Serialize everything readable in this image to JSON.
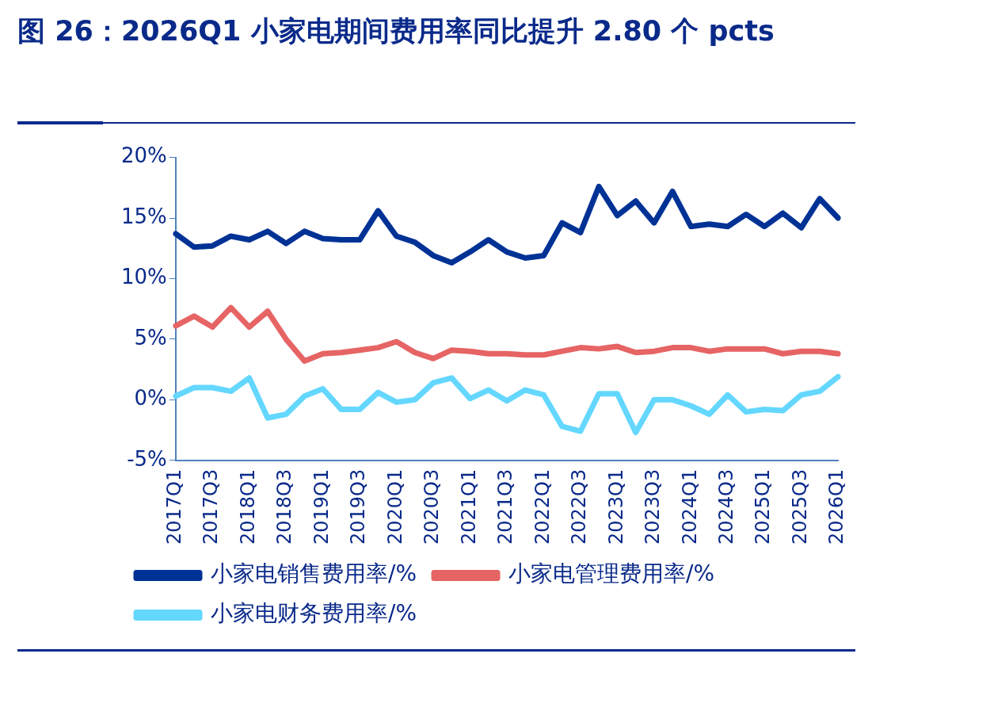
{
  "chart_data": {
    "type": "line",
    "title": "图 26：2026Q1 小家电期间费用率同比提升 2.80 个 pcts",
    "categories": [
      "2017Q1",
      null,
      "2017Q3",
      null,
      "2018Q1",
      null,
      "2018Q3",
      null,
      "2019Q1",
      null,
      "2019Q3",
      null,
      "2020Q1",
      null,
      "2020Q3",
      null,
      "2021Q1",
      null,
      "2021Q3",
      null,
      "2022Q1",
      null,
      "2022Q3",
      null,
      "2023Q1",
      null,
      "2023Q3",
      null,
      "2024Q1",
      null,
      "2024Q3",
      null,
      "2025Q1",
      null,
      "2025Q3",
      null,
      "2026Q1"
    ],
    "series": [
      {
        "name": "小家电销售费用率/%",
        "color": "#003296",
        "values": [
          13.7,
          12.6,
          12.7,
          13.5,
          13.2,
          13.9,
          12.9,
          13.9,
          13.3,
          13.2,
          13.2,
          15.6,
          13.5,
          13.0,
          11.9,
          11.3,
          12.2,
          13.2,
          12.2,
          11.7,
          11.9,
          14.6,
          13.8,
          17.6,
          15.2,
          16.4,
          14.6,
          17.2,
          14.3,
          14.5,
          14.3,
          15.3,
          14.3,
          15.4,
          14.2,
          16.6,
          15.0
        ]
      },
      {
        "name": "小家电管理费用率/%",
        "color": "#e66464",
        "values": [
          6.1,
          6.9,
          6.0,
          7.6,
          6.0,
          7.3,
          5.0,
          3.2,
          3.8,
          3.9,
          4.1,
          4.3,
          4.8,
          3.9,
          3.4,
          4.1,
          4.0,
          3.8,
          3.8,
          3.7,
          3.7,
          4.0,
          4.3,
          4.2,
          4.4,
          3.9,
          4.0,
          4.3,
          4.3,
          4.0,
          4.2,
          4.2,
          4.2,
          3.8,
          4.0,
          4.0,
          3.8
        ]
      },
      {
        "name": "小家电财务费用率/%",
        "color": "#64d7ff",
        "values": [
          0.3,
          1.0,
          1.0,
          0.7,
          1.8,
          -1.5,
          -1.2,
          0.3,
          0.9,
          -0.8,
          -0.8,
          0.6,
          -0.2,
          0.0,
          1.4,
          1.8,
          0.1,
          0.8,
          -0.1,
          0.8,
          0.4,
          -2.2,
          -2.6,
          0.5,
          0.5,
          -2.7,
          0.0,
          0.0,
          -0.5,
          -1.2,
          0.4,
          -1.0,
          -0.8,
          -0.9,
          0.4,
          0.7,
          1.9
        ]
      }
    ],
    "ylim": [
      -5,
      20
    ],
    "yticks": [
      {
        "value": -5,
        "label": "-5%"
      },
      {
        "value": 0,
        "label": "0%"
      },
      {
        "value": 5,
        "label": "5%"
      },
      {
        "value": 10,
        "label": "10%"
      },
      {
        "value": 15,
        "label": "15%"
      },
      {
        "value": 20,
        "label": "20%"
      }
    ],
    "grid": false,
    "legend": "bottom",
    "marker": "none",
    "line_style": "solid"
  }
}
